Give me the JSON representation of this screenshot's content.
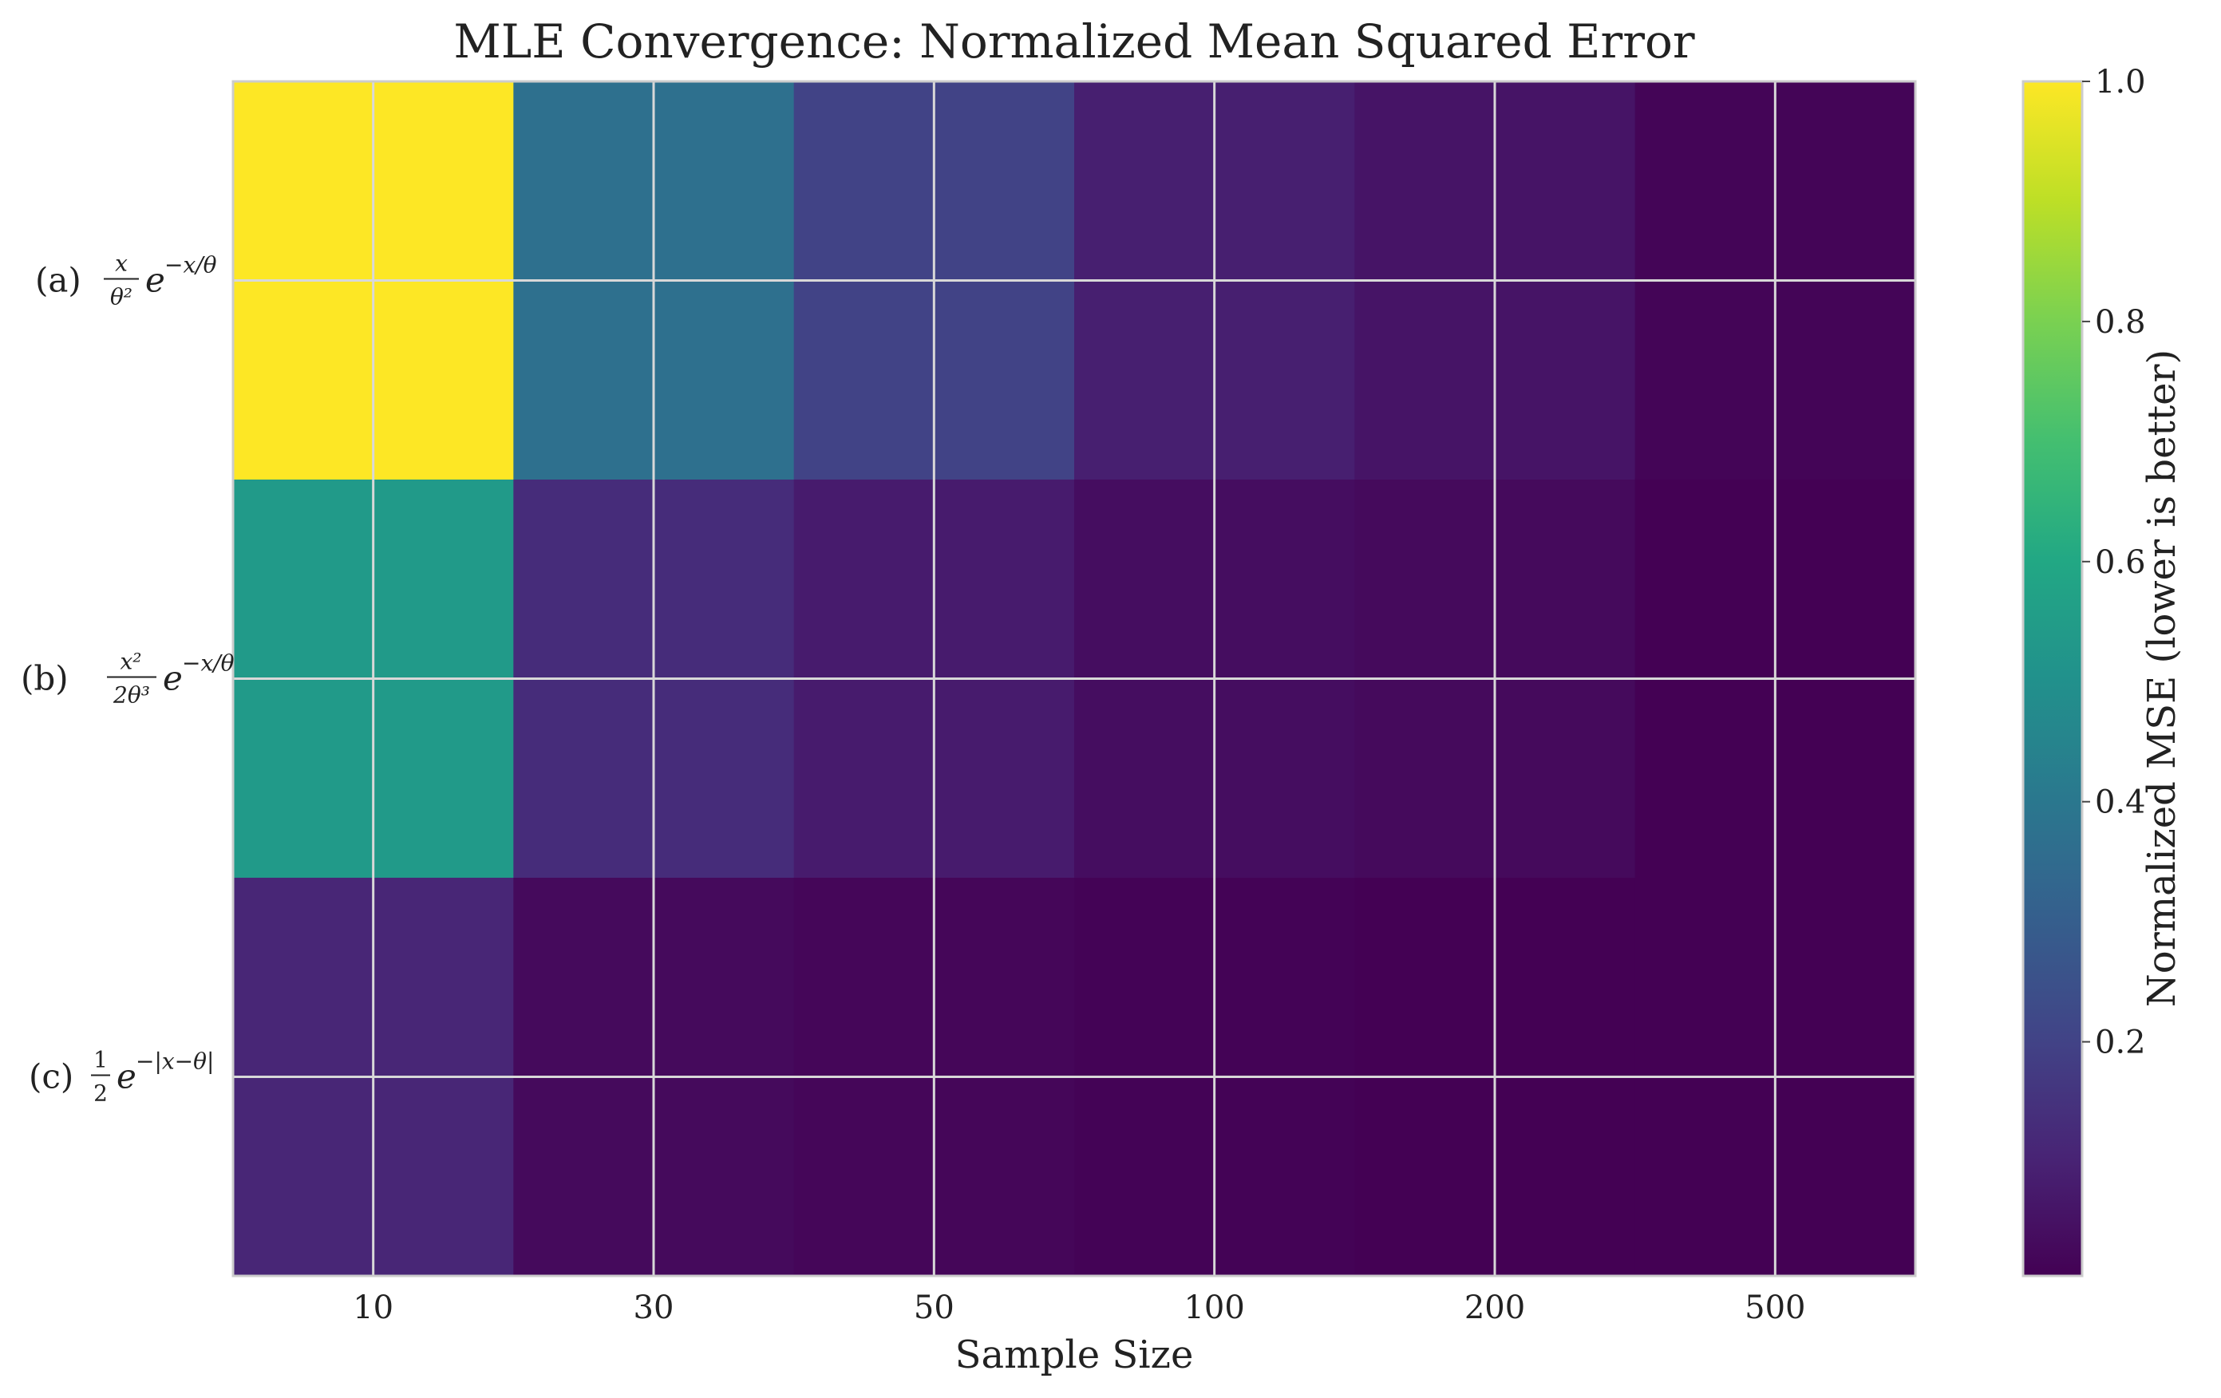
{
  "chart_data": {
    "type": "heatmap",
    "title": "MLE Convergence: Normalized Mean Squared Error",
    "xlabel": "Sample Size",
    "ylabel": "",
    "x_categories": [
      "10",
      "30",
      "50",
      "100",
      "200",
      "500"
    ],
    "y_categories": [
      {
        "prefix": "(a)",
        "formula": "x/θ² · e^(−x/θ)"
      },
      {
        "prefix": "(b)",
        "formula": "x²/(2θ³) · e^(−x/θ)"
      },
      {
        "prefix": "(c)",
        "formula": "½ · e^(−|x−θ|)"
      }
    ],
    "values": [
      [
        1.0,
        0.37,
        0.2,
        0.09,
        0.06,
        0.015
      ],
      [
        0.54,
        0.13,
        0.08,
        0.04,
        0.03,
        0.005
      ],
      [
        0.11,
        0.03,
        0.02,
        0.01,
        0.005,
        0.005
      ]
    ],
    "colormap": "viridis",
    "colorbar": {
      "label": "Normalized MSE (lower is better)",
      "range": [
        0.005,
        1.0
      ],
      "ticks": [
        "0.2",
        "0.4",
        "0.6",
        "0.8",
        "1.0"
      ]
    },
    "grid": true
  }
}
